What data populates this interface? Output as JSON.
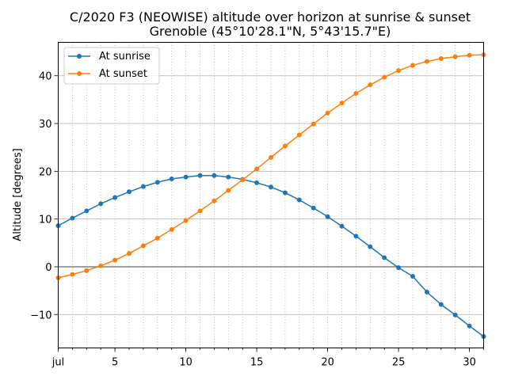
{
  "chart_data": {
    "type": "line",
    "title": "C/2020 F3 (NEOWISE) altitude over horizon at sunrise & sunset",
    "subtitle": "Grenoble (45°10'28.1\"N, 5°43'15.7\"E)",
    "xlabel": "",
    "ylabel": "Altitude [degrees]",
    "xlim": [
      1,
      31
    ],
    "ylim": [
      -17,
      47
    ],
    "x_ticks": [
      {
        "value": 1,
        "label": "jul"
      },
      {
        "value": 5,
        "label": "5"
      },
      {
        "value": 10,
        "label": "10"
      },
      {
        "value": 15,
        "label": "15"
      },
      {
        "value": 20,
        "label": "20"
      },
      {
        "value": 25,
        "label": "25"
      },
      {
        "value": 30,
        "label": "30"
      }
    ],
    "y_ticks": [
      {
        "value": -10,
        "label": "−10"
      },
      {
        "value": 0,
        "label": "0"
      },
      {
        "value": 10,
        "label": "10"
      },
      {
        "value": 20,
        "label": "20"
      },
      {
        "value": 30,
        "label": "30"
      },
      {
        "value": 40,
        "label": "40"
      }
    ],
    "grid": "horizontal major solid, vertical daily dotted",
    "zero_line": true,
    "legend_position": "top-left",
    "x": [
      1,
      2,
      3,
      4,
      5,
      6,
      7,
      8,
      9,
      10,
      11,
      12,
      13,
      14,
      15,
      16,
      17,
      18,
      19,
      20,
      21,
      22,
      23,
      24,
      25,
      26,
      27,
      28,
      29,
      30,
      31
    ],
    "series": [
      {
        "name": "At sunrise",
        "color": "#1f77b4",
        "values": [
          8.6,
          10.2,
          11.7,
          13.2,
          14.5,
          15.7,
          16.8,
          17.7,
          18.4,
          18.8,
          19.1,
          19.1,
          18.8,
          18.3,
          17.6,
          16.7,
          15.5,
          14.0,
          12.3,
          10.5,
          8.5,
          6.4,
          4.2,
          1.9,
          -0.2,
          -2.0,
          -5.3,
          -7.9,
          -10.1,
          -12.4,
          -14.6
        ]
      },
      {
        "name": "At sunset",
        "color": "#ff7f0e",
        "values": [
          -2.3,
          -1.6,
          -0.8,
          0.2,
          1.4,
          2.8,
          4.4,
          6.0,
          7.8,
          9.7,
          11.7,
          13.8,
          16.0,
          18.2,
          20.5,
          22.9,
          25.3,
          27.6,
          29.9,
          32.2,
          34.3,
          36.3,
          38.1,
          39.7,
          41.1,
          42.2,
          43.0,
          43.6,
          44.0,
          44.3,
          44.4
        ]
      }
    ]
  }
}
